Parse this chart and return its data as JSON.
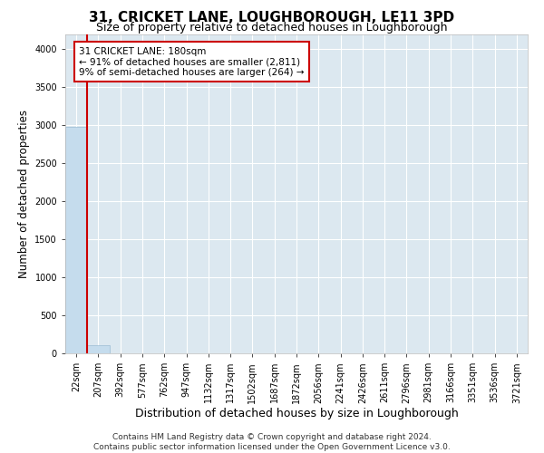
{
  "title": "31, CRICKET LANE, LOUGHBOROUGH, LE11 3PD",
  "subtitle": "Size of property relative to detached houses in Loughborough",
  "xlabel": "Distribution of detached houses by size in Loughborough",
  "ylabel": "Number of detached properties",
  "footer_line1": "Contains HM Land Registry data © Crown copyright and database right 2024.",
  "footer_line2": "Contains public sector information licensed under the Open Government Licence v3.0.",
  "bin_labels": [
    "22sqm",
    "207sqm",
    "392sqm",
    "577sqm",
    "762sqm",
    "947sqm",
    "1132sqm",
    "1317sqm",
    "1502sqm",
    "1687sqm",
    "1872sqm",
    "2056sqm",
    "2241sqm",
    "2426sqm",
    "2611sqm",
    "2796sqm",
    "2981sqm",
    "3166sqm",
    "3351sqm",
    "3536sqm",
    "3721sqm"
  ],
  "bar_heights": [
    2980,
    105,
    3,
    1,
    0,
    0,
    0,
    0,
    0,
    0,
    0,
    0,
    0,
    0,
    0,
    0,
    0,
    0,
    0,
    0
  ],
  "bar_color": "#c5dced",
  "bar_edge_color": "#9bbdd4",
  "ylim": [
    0,
    4200
  ],
  "yticks": [
    0,
    500,
    1000,
    1500,
    2000,
    2500,
    3000,
    3500,
    4000
  ],
  "property_sqm": "180sqm",
  "annotation_text": "31 CRICKET LANE: 180sqm\n← 91% of detached houses are smaller (2,811)\n9% of semi-detached houses are larger (264) →",
  "annotation_box_color": "#cc0000",
  "vline_color": "#cc0000",
  "bg_color": "#dce8f0",
  "grid_color": "#ffffff",
  "title_fontsize": 11,
  "subtitle_fontsize": 9,
  "tick_fontsize": 7,
  "ylabel_fontsize": 8.5,
  "xlabel_fontsize": 9,
  "footer_fontsize": 6.5
}
